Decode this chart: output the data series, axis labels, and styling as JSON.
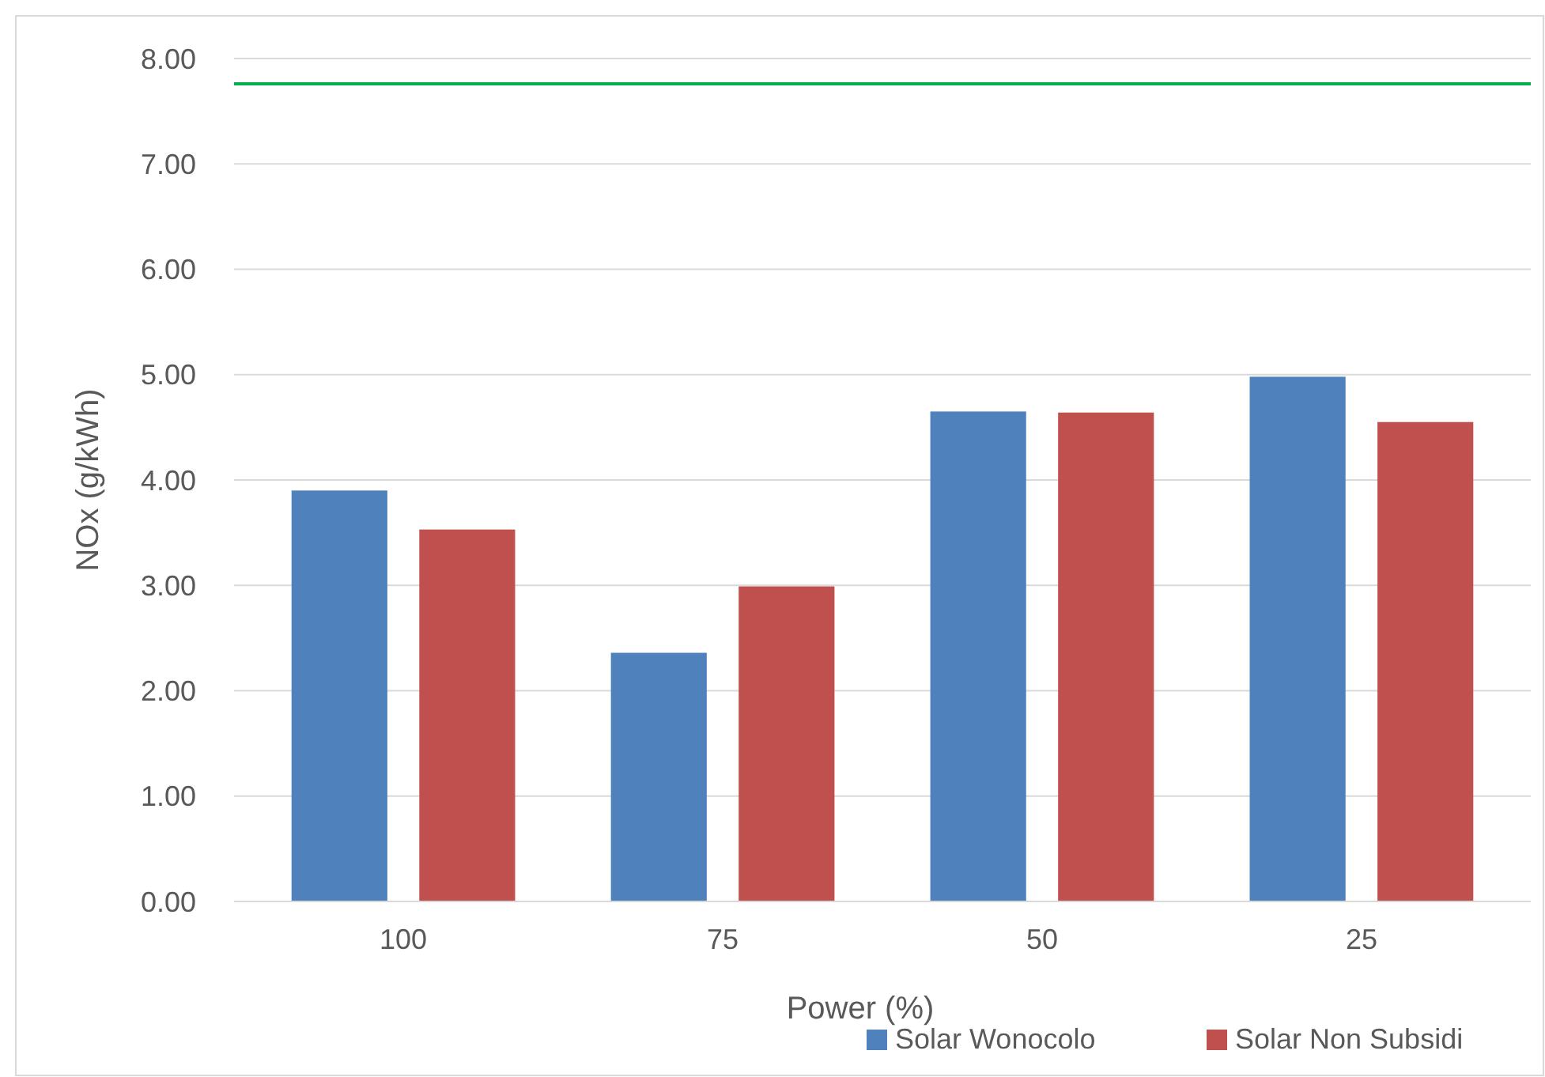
{
  "chart_data": {
    "type": "bar",
    "xlabel": "Power (%)",
    "ylabel": "NOx (g/kWh)",
    "categories": [
      "100",
      "75",
      "50",
      "25"
    ],
    "series": [
      {
        "name": "Solar Wonocolo",
        "color": "#4f81bd",
        "values": [
          3.9,
          2.36,
          4.65,
          4.98
        ]
      },
      {
        "name": "Solar Non Subsidi",
        "color": "#c0504d",
        "values": [
          3.53,
          2.99,
          4.64,
          4.55
        ]
      }
    ],
    "ylim": [
      0,
      8
    ],
    "yticks": [
      {
        "value": 0,
        "label": "0.00"
      },
      {
        "value": 1,
        "label": "1.00"
      },
      {
        "value": 2,
        "label": "2.00"
      },
      {
        "value": 3,
        "label": "3.00"
      },
      {
        "value": 4,
        "label": "4.00"
      },
      {
        "value": 5,
        "label": "5.00"
      },
      {
        "value": 6,
        "label": "6.00"
      },
      {
        "value": 7,
        "label": "7.00"
      },
      {
        "value": 8,
        "label": "8.00"
      }
    ],
    "ref_lines": [
      {
        "axis": "y",
        "value": 7.76,
        "color": "#00b050"
      }
    ],
    "grid": "y",
    "legend": "bottom right"
  }
}
